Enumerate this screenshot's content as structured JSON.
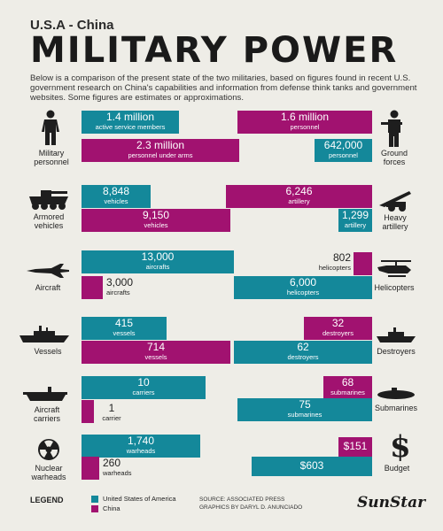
{
  "header": {
    "subtitle": "U.S.A - China",
    "title": "MILITARY POWER",
    "intro": "Below is a comparison of the present state of the two militaries, based on figures found in recent U.S. government research on China's capabilities and information from defense think tanks and government websites. Some figures are estimates or approximations."
  },
  "categories": {
    "military_personnel": "Military personnel",
    "ground_forces": "Ground forces",
    "armored_vehicles": "Armored vehicles",
    "heavy_artillery": "Heavy artillery",
    "aircraft": "Aircraft",
    "helicopters": "Helicopters",
    "vessels": "Vessels",
    "destroyers": "Destroyers",
    "aircraft_carriers": "Aircraft carriers",
    "submarines": "Submarines",
    "nuclear_warheads": "Nuclear warheads",
    "budget": "Budget"
  },
  "chart_data": {
    "type": "bar",
    "title": "MILITARY POWER",
    "subtitle": "U.S.A - China",
    "series_names": [
      "United States of America",
      "China"
    ],
    "colors": {
      "usa": "#14889a",
      "china": "#a11270"
    },
    "metrics": [
      {
        "category": "Military personnel",
        "series": "United States of America",
        "value_text": "1.4 million",
        "unit": "active service members",
        "value": 1400000
      },
      {
        "category": "Military personnel",
        "series": "China",
        "value_text": "2.3 million",
        "unit": "personnel under arms",
        "value": 2300000
      },
      {
        "category": "Ground forces",
        "series": "China",
        "value_text": "1.6 million",
        "unit": "personnel",
        "value": 1600000
      },
      {
        "category": "Ground forces",
        "series": "United States of America",
        "value_text": "642,000",
        "unit": "personnel",
        "value": 642000
      },
      {
        "category": "Armored vehicles",
        "series": "United States of America",
        "value_text": "8,848",
        "unit": "vehicles",
        "value": 8848
      },
      {
        "category": "Armored vehicles",
        "series": "China",
        "value_text": "9,150",
        "unit": "vehicles",
        "value": 9150
      },
      {
        "category": "Heavy artillery",
        "series": "China",
        "value_text": "6,246",
        "unit": "artillery",
        "value": 6246
      },
      {
        "category": "Heavy artillery",
        "series": "United States of America",
        "value_text": "1,299",
        "unit": "artillery",
        "value": 1299
      },
      {
        "category": "Aircraft",
        "series": "United States of America",
        "value_text": "13,000",
        "unit": "aircrafts",
        "value": 13000
      },
      {
        "category": "Aircraft",
        "series": "China",
        "value_text": "3,000",
        "unit": "aircrafts",
        "value": 3000
      },
      {
        "category": "Helicopters",
        "series": "China",
        "value_text": "802",
        "unit": "helicopters",
        "value": 802
      },
      {
        "category": "Helicopters",
        "series": "United States of America",
        "value_text": "6,000",
        "unit": "helicopters",
        "value": 6000
      },
      {
        "category": "Vessels",
        "series": "United States of America",
        "value_text": "415",
        "unit": "vessels",
        "value": 415
      },
      {
        "category": "Vessels",
        "series": "China",
        "value_text": "714",
        "unit": "vessels",
        "value": 714
      },
      {
        "category": "Destroyers",
        "series": "China",
        "value_text": "32",
        "unit": "destroyers",
        "value": 32
      },
      {
        "category": "Destroyers",
        "series": "United States of America",
        "value_text": "62",
        "unit": "destroyers",
        "value": 62
      },
      {
        "category": "Aircraft carriers",
        "series": "United States of America",
        "value_text": "10",
        "unit": "carriers",
        "value": 10
      },
      {
        "category": "Aircraft carriers",
        "series": "China",
        "value_text": "1",
        "unit": "carrier",
        "value": 1
      },
      {
        "category": "Submarines",
        "series": "China",
        "value_text": "68",
        "unit": "submarines",
        "value": 68
      },
      {
        "category": "Submarines",
        "series": "United States of America",
        "value_text": "75",
        "unit": "submarines",
        "value": 75
      },
      {
        "category": "Nuclear warheads",
        "series": "United States of America",
        "value_text": "1,740",
        "unit": "warheads",
        "value": 1740
      },
      {
        "category": "Nuclear warheads",
        "series": "China",
        "value_text": "260",
        "unit": "warheads",
        "value": 260
      },
      {
        "category": "Budget",
        "series": "China",
        "value_text": "$151",
        "unit": "",
        "value": 151
      },
      {
        "category": "Budget",
        "series": "United States of America",
        "value_text": "$603",
        "unit": "",
        "value": 603
      }
    ]
  },
  "legend": {
    "title": "LEGEND",
    "usa": "United States of America",
    "china": "China"
  },
  "footer": {
    "source": "SOURCE: ASSOCIATED PRESS",
    "graphics": "GRAPHICS BY DARYL D. ANUNCIADO",
    "brand": "SunStar"
  },
  "icons": [
    "soldier-icon",
    "rifleman-icon",
    "armored-vehicle-icon",
    "artillery-icon",
    "jet-icon",
    "helicopter-icon",
    "ship-icon",
    "destroyer-icon",
    "carrier-icon",
    "submarine-icon",
    "nuclear-icon",
    "dollar-icon"
  ]
}
